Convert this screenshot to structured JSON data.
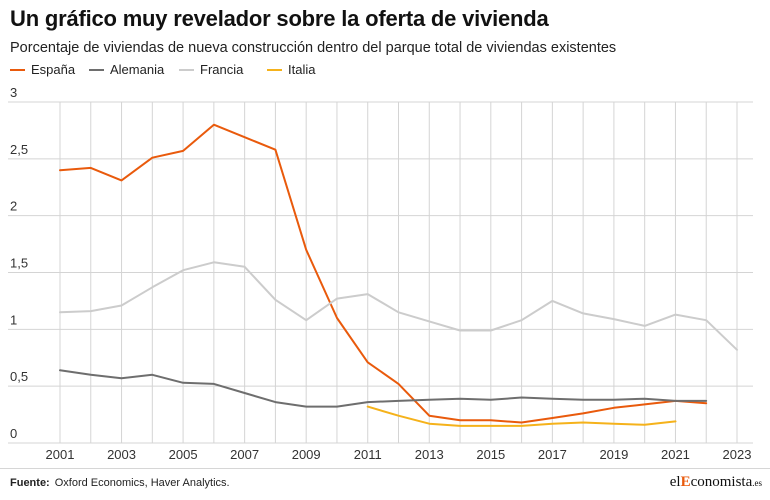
{
  "title": "Un gráfico muy revelador sobre la oferta de vivienda",
  "subtitle": "Porcentaje de viviendas de nueva construcción dentro del parque total de viviendas existentes",
  "source_label": "Fuente:",
  "source_text": "Oxford Economics, Haver Analytics.",
  "brand": {
    "pre": "el",
    "highlight": "E",
    "post": "conomista",
    "suffix": ".es"
  },
  "colors": {
    "espana": "#e95a0c",
    "alemania": "#6e6e6e",
    "francia": "#cccccc",
    "italia": "#f5b21b",
    "grid": "#d4d4d4"
  },
  "chart_data": {
    "type": "line",
    "x": [
      2001,
      2002,
      2003,
      2004,
      2005,
      2006,
      2007,
      2008,
      2009,
      2010,
      2011,
      2012,
      2013,
      2014,
      2015,
      2016,
      2017,
      2018,
      2019,
      2020,
      2021,
      2022,
      2023
    ],
    "xticks": [
      2001,
      2003,
      2005,
      2007,
      2009,
      2011,
      2013,
      2015,
      2017,
      2019,
      2021,
      2023
    ],
    "xtick_labels": [
      "2001",
      "2003",
      "2005",
      "2007",
      "2009",
      "2011",
      "2013",
      "2015",
      "2017",
      "2019",
      "2021",
      "2023"
    ],
    "yticks": [
      0,
      0.5,
      1,
      1.5,
      2,
      2.5,
      3
    ],
    "ytick_labels": [
      "0",
      "0,5",
      "1",
      "1,5",
      "2",
      "2,5",
      "3"
    ],
    "ylim": [
      0,
      3
    ],
    "xlim": [
      2001,
      2023
    ],
    "grid": "vertical and horizontal",
    "legend_position": "top-left",
    "series": [
      {
        "name": "España",
        "color": "#e95a0c",
        "x": [
          2001,
          2002,
          2003,
          2004,
          2005,
          2006,
          2007,
          2008,
          2009,
          2010,
          2011,
          2012,
          2013,
          2014,
          2015,
          2016,
          2017,
          2018,
          2019,
          2020,
          2021,
          2022
        ],
        "values": [
          2.4,
          2.42,
          2.31,
          2.51,
          2.57,
          2.8,
          2.69,
          2.58,
          1.7,
          1.1,
          0.71,
          0.52,
          0.24,
          0.2,
          0.2,
          0.18,
          0.22,
          0.26,
          0.31,
          0.34,
          0.37,
          0.35
        ]
      },
      {
        "name": "Alemania",
        "color": "#6e6e6e",
        "x": [
          2001,
          2002,
          2003,
          2004,
          2005,
          2006,
          2007,
          2008,
          2009,
          2010,
          2011,
          2012,
          2013,
          2014,
          2015,
          2016,
          2017,
          2018,
          2019,
          2020,
          2021,
          2022
        ],
        "values": [
          0.64,
          0.6,
          0.57,
          0.6,
          0.53,
          0.52,
          0.44,
          0.36,
          0.32,
          0.32,
          0.36,
          0.37,
          0.38,
          0.39,
          0.38,
          0.4,
          0.39,
          0.38,
          0.38,
          0.39,
          0.37,
          0.37
        ]
      },
      {
        "name": "Francia",
        "color": "#cccccc",
        "x": [
          2001,
          2002,
          2003,
          2004,
          2005,
          2006,
          2007,
          2008,
          2009,
          2010,
          2011,
          2012,
          2013,
          2014,
          2015,
          2016,
          2017,
          2018,
          2019,
          2020,
          2021,
          2022,
          2023
        ],
        "values": [
          1.15,
          1.16,
          1.21,
          1.37,
          1.52,
          1.59,
          1.55,
          1.26,
          1.08,
          1.27,
          1.31,
          1.15,
          1.07,
          0.99,
          0.99,
          1.08,
          1.25,
          1.14,
          1.09,
          1.03,
          1.13,
          1.08,
          0.82
        ]
      },
      {
        "name": "Italia",
        "color": "#f5b21b",
        "x": [
          2011,
          2012,
          2013,
          2014,
          2015,
          2016,
          2017,
          2018,
          2019,
          2020,
          2021
        ],
        "values": [
          0.32,
          0.24,
          0.17,
          0.15,
          0.15,
          0.15,
          0.17,
          0.18,
          0.17,
          0.16,
          0.19
        ]
      }
    ]
  }
}
